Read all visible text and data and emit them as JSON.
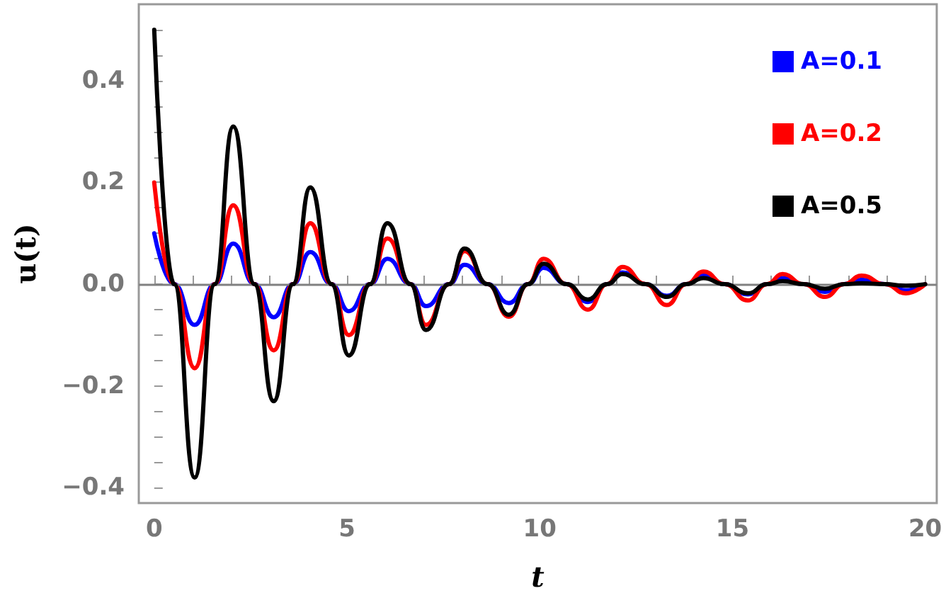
{
  "chart_data": {
    "type": "line",
    "xlabel": "t",
    "ylabel": "u(t)",
    "x": [
      0,
      0.52,
      1.05,
      1.57,
      2.05,
      2.6,
      3.1,
      3.6,
      4.05,
      4.6,
      5.05,
      5.6,
      6.05,
      6.65,
      7.05,
      7.65,
      8.05,
      8.65,
      9.2,
      9.7,
      10.1,
      10.7,
      11.25,
      11.75,
      12.15,
      12.75,
      13.3,
      13.8,
      14.25,
      14.8,
      15.4,
      15.9,
      16.3,
      16.85,
      17.4,
      17.9,
      18.35,
      18.95,
      19.5,
      20
    ],
    "series": [
      {
        "name": "A=0.1",
        "color": "#0000ff",
        "values": [
          0.1,
          0,
          -0.08,
          0,
          0.08,
          0,
          -0.065,
          0,
          0.063,
          0,
          -0.053,
          0,
          0.05,
          0,
          -0.043,
          0,
          0.038,
          0,
          -0.037,
          0,
          0.032,
          0,
          -0.035,
          0,
          0.023,
          0,
          -0.023,
          0,
          0.018,
          0,
          -0.02,
          0,
          0.012,
          0,
          -0.015,
          0,
          0.009,
          0,
          -0.012,
          0
        ]
      },
      {
        "name": "A=0.2",
        "color": "#ff0000",
        "values": [
          0.2,
          0,
          -0.165,
          0,
          0.155,
          0,
          -0.13,
          0,
          0.12,
          0,
          -0.1,
          0,
          0.09,
          0,
          -0.08,
          0,
          0.065,
          0,
          -0.064,
          0,
          0.05,
          0,
          -0.05,
          0,
          0.034,
          0,
          -0.041,
          0,
          0.025,
          0,
          -0.032,
          0,
          0.02,
          0,
          -0.025,
          0,
          0.017,
          0,
          -0.018,
          0
        ]
      },
      {
        "name": "A=0.5",
        "color": "#000000",
        "values": [
          0.5,
          0,
          -0.38,
          0,
          0.31,
          0,
          -0.23,
          0,
          0.19,
          0,
          -0.14,
          0,
          0.12,
          0,
          -0.09,
          0,
          0.07,
          0,
          -0.06,
          0,
          0.04,
          0,
          -0.03,
          0,
          0.02,
          0,
          -0.025,
          0,
          0.012,
          0,
          -0.018,
          0,
          0.006,
          0,
          -0.009,
          0,
          0.002,
          0,
          -0.003,
          0
        ]
      }
    ],
    "xlim": [
      -0.4,
      20.3
    ],
    "xticks": [
      0,
      {
        "value": 1,
        "label": null
      },
      {
        "value": 2,
        "label": null
      },
      {
        "value": 3,
        "label": null
      },
      {
        "value": 4,
        "label": null
      },
      5,
      {
        "value": 6,
        "label": null
      },
      {
        "value": 7,
        "label": null
      },
      {
        "value": 8,
        "label": null
      },
      {
        "value": 9,
        "label": null
      },
      10,
      {
        "value": 11,
        "label": null
      },
      {
        "value": 12,
        "label": null
      },
      {
        "value": 13,
        "label": null
      },
      {
        "value": 14,
        "label": null
      },
      15,
      {
        "value": 16,
        "label": null
      },
      {
        "value": 17,
        "label": null
      },
      {
        "value": 18,
        "label": null
      },
      {
        "value": 19,
        "label": null
      },
      20
    ],
    "ylim": [
      -0.43,
      0.55
    ],
    "yticks": [
      {
        "value": -0.4,
        "label": "−0.4"
      },
      {
        "value": -0.35,
        "label": null
      },
      {
        "value": -0.3,
        "label": null
      },
      {
        "value": -0.25,
        "label": null
      },
      {
        "value": -0.2,
        "label": "−0.2"
      },
      {
        "value": -0.15,
        "label": null
      },
      {
        "value": -0.1,
        "label": null
      },
      {
        "value": -0.05,
        "label": null
      },
      {
        "value": 0,
        "label": "0.0"
      },
      {
        "value": 0.05,
        "label": null
      },
      {
        "value": 0.1,
        "label": null
      },
      {
        "value": 0.15,
        "label": null
      },
      {
        "value": 0.2,
        "label": "0.2"
      },
      {
        "value": 0.25,
        "label": null
      },
      {
        "value": 0.3,
        "label": null
      },
      {
        "value": 0.35,
        "label": null
      },
      {
        "value": 0.4,
        "label": "0.4"
      },
      {
        "value": 0.45,
        "label": null
      },
      {
        "value": 0.5,
        "label": null
      }
    ],
    "ref_lines": [
      {
        "axis": "y",
        "value": 0,
        "color": "#808080"
      }
    ],
    "legend": "top right",
    "grid": false,
    "marker": "none",
    "line_style": "solid"
  }
}
